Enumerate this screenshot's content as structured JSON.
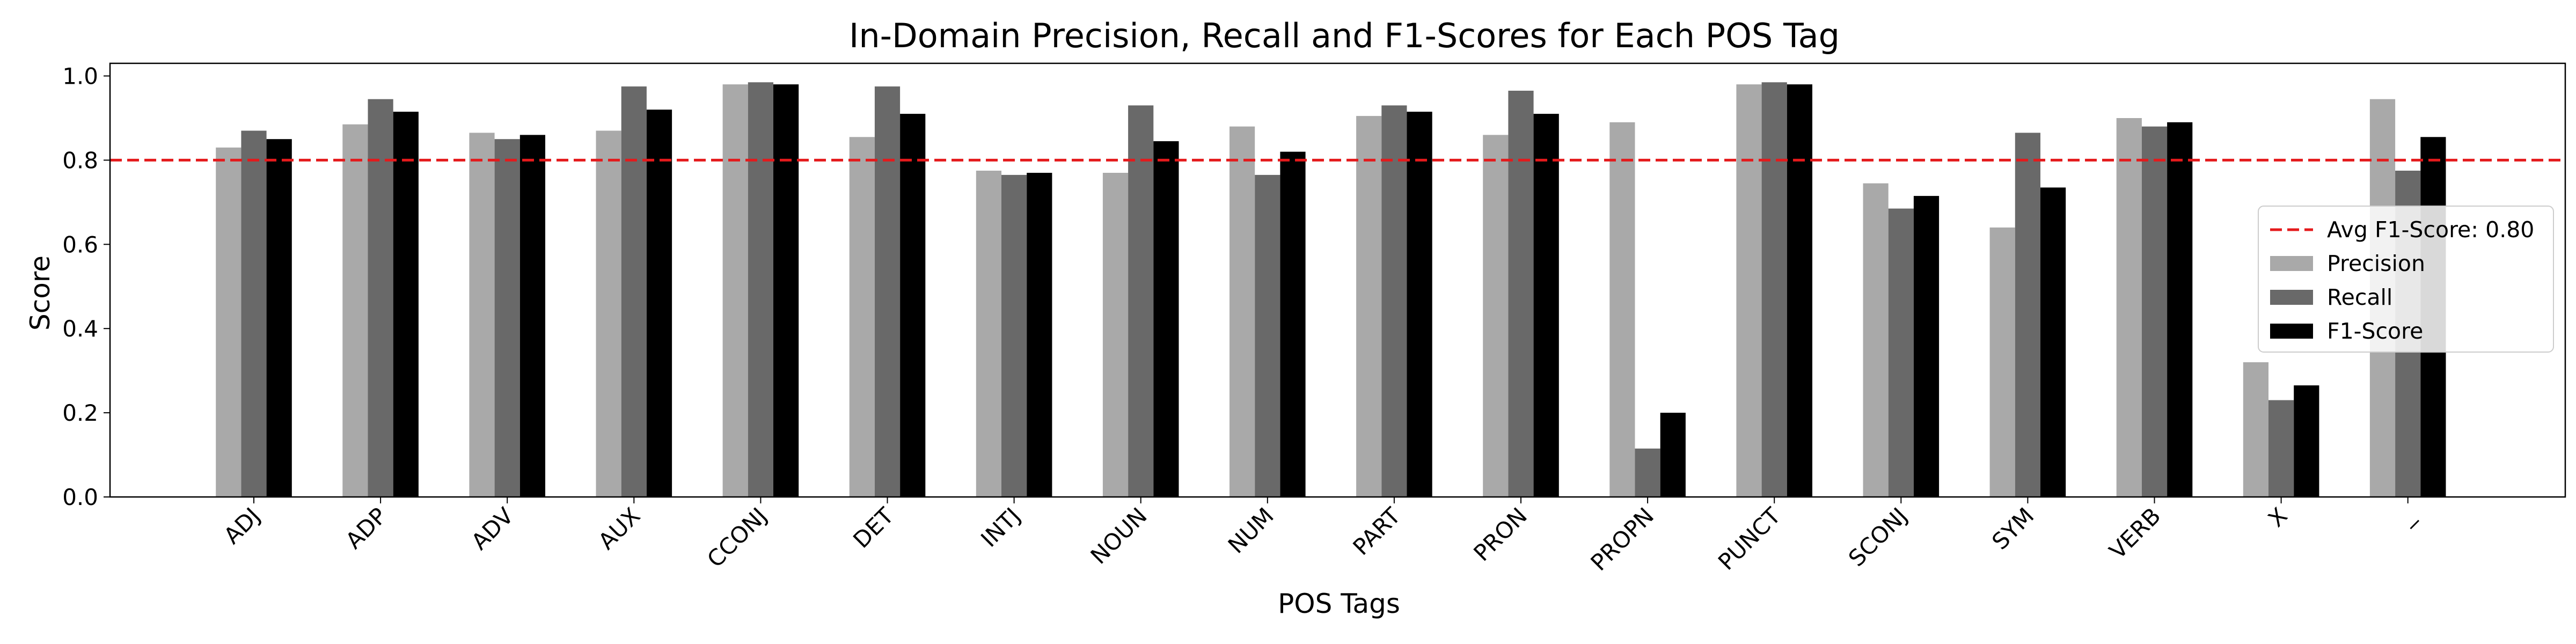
{
  "chart_data": {
    "type": "bar",
    "title": "In-Domain Precision, Recall and F1-Scores for Each POS Tag",
    "xlabel": "POS Tags",
    "ylabel": "Score",
    "ylim": [
      0,
      1.03
    ],
    "yticks": [
      "0.0",
      "0.2",
      "0.4",
      "0.6",
      "0.8",
      "1.0"
    ],
    "grid": false,
    "legend_position": "center-right",
    "categories": [
      "ADJ",
      "ADP",
      "ADV",
      "AUX",
      "CCONJ",
      "DET",
      "INTJ",
      "NOUN",
      "NUM",
      "PART",
      "PRON",
      "PROPN",
      "PUNCT",
      "SCONJ",
      "SYM",
      "VERB",
      "X",
      "_"
    ],
    "series": [
      {
        "name": "Precision",
        "color": "#a9a9a9",
        "values": [
          0.83,
          0.885,
          0.865,
          0.87,
          0.98,
          0.855,
          0.775,
          0.77,
          0.88,
          0.905,
          0.86,
          0.89,
          0.98,
          0.745,
          0.64,
          0.9,
          0.32,
          0.945
        ]
      },
      {
        "name": "Recall",
        "color": "#696969",
        "values": [
          0.87,
          0.945,
          0.85,
          0.975,
          0.985,
          0.975,
          0.765,
          0.93,
          0.765,
          0.93,
          0.965,
          0.115,
          0.985,
          0.685,
          0.865,
          0.88,
          0.23,
          0.775
        ]
      },
      {
        "name": "F1-Score",
        "color": "#000000",
        "values": [
          0.85,
          0.915,
          0.86,
          0.92,
          0.98,
          0.91,
          0.77,
          0.845,
          0.82,
          0.915,
          0.91,
          0.2,
          0.98,
          0.715,
          0.735,
          0.89,
          0.265,
          0.855
        ]
      }
    ],
    "reference_line": {
      "label": "Avg F1-Score: 0.80",
      "value": 0.8,
      "color": "#e41a1c",
      "style": "dashed"
    }
  }
}
